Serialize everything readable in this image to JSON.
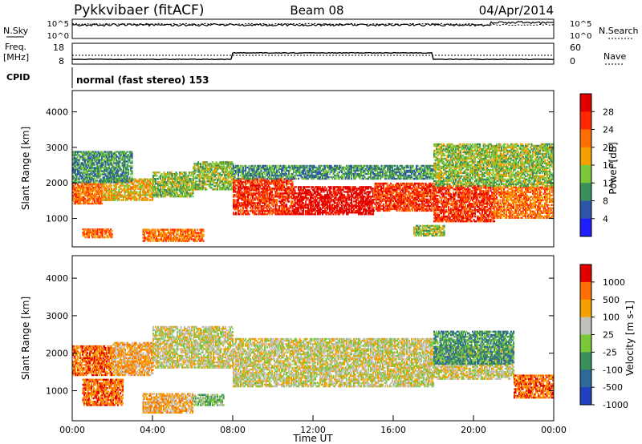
{
  "header": {
    "station": "Pykkvibaer (fitACF)",
    "beam": "Beam 08",
    "date": "04/Apr/2014"
  },
  "top_panels": {
    "nsky_label": "N.Sky",
    "nsearch_label": "N.Search",
    "noise_ticks": [
      "10^5",
      "10^0"
    ],
    "freq_label_1": "Freq.",
    "freq_label_2": "[MHz]",
    "freq_ticks": [
      "18",
      "8"
    ],
    "nave_label": "Nave",
    "nave_ticks": [
      "60",
      "0"
    ],
    "cpid_label": "CPID",
    "cpid_text": "normal (fast stereo) 153"
  },
  "chart_data": [
    {
      "type": "heatmap",
      "name": "power",
      "ylabel": "Slant Range [km]",
      "ylim": [
        200,
        4600
      ],
      "yticks": [
        1000,
        2000,
        3000,
        4000
      ],
      "xlim": [
        0,
        24
      ],
      "colorbar_label": "Power [dB]",
      "colorbar_ticks": [
        "28",
        "24",
        "20",
        "16",
        "12",
        "8",
        "4"
      ],
      "colors": [
        "#1e1eff",
        "#2d55a8",
        "#3a8f5a",
        "#7ac83a",
        "#f5a000",
        "#ff6e00",
        "#ff2800",
        "#e00000"
      ],
      "levels": [
        0,
        4,
        8,
        12,
        16,
        20,
        24,
        28
      ],
      "echo_bands": [
        {
          "t0": 0.0,
          "t1": 1.5,
          "r_lo": 1400,
          "r_hi": 2000,
          "level": 5
        },
        {
          "t0": 1.5,
          "t1": 4.0,
          "r_lo": 1500,
          "r_hi": 2100,
          "level": 4
        },
        {
          "t0": 4.0,
          "t1": 6.0,
          "r_lo": 1600,
          "r_hi": 2300,
          "level": 3
        },
        {
          "t0": 6.0,
          "t1": 8.0,
          "r_lo": 1800,
          "r_hi": 2600,
          "level": 3
        },
        {
          "t0": 8.0,
          "t1": 11.0,
          "r_lo": 1100,
          "r_hi": 2100,
          "level": 6
        },
        {
          "t0": 11.0,
          "t1": 15.0,
          "r_lo": 1100,
          "r_hi": 1900,
          "level": 7
        },
        {
          "t0": 15.0,
          "t1": 18.0,
          "r_lo": 1200,
          "r_hi": 2000,
          "level": 6
        },
        {
          "t0": 18.0,
          "t1": 21.0,
          "r_lo": 900,
          "r_hi": 1900,
          "level": 6
        },
        {
          "t0": 21.0,
          "t1": 24.0,
          "r_lo": 1000,
          "r_hi": 1900,
          "level": 5
        },
        {
          "t0": 0.0,
          "t1": 3.0,
          "r_lo": 2000,
          "r_hi": 2900,
          "level": 2
        },
        {
          "t0": 8.0,
          "t1": 18.0,
          "r_lo": 2100,
          "r_hi": 2500,
          "level": 2
        },
        {
          "t0": 18.0,
          "t1": 24.0,
          "r_lo": 1900,
          "r_hi": 3100,
          "level": 3
        },
        {
          "t0": 3.5,
          "t1": 6.5,
          "r_lo": 350,
          "r_hi": 700,
          "level": 5
        },
        {
          "t0": 0.5,
          "t1": 2.0,
          "r_lo": 450,
          "r_hi": 700,
          "level": 5
        },
        {
          "t0": 17.0,
          "t1": 18.5,
          "r_lo": 500,
          "r_hi": 800,
          "level": 3
        }
      ]
    },
    {
      "type": "heatmap",
      "name": "velocity",
      "ylabel": "Slant Range [km]",
      "ylim": [
        200,
        4600
      ],
      "yticks": [
        1000,
        2000,
        3000,
        4000
      ],
      "xlim": [
        0,
        24
      ],
      "xticks": [
        "00:00",
        "04:00",
        "08:00",
        "12:00",
        "16:00",
        "20:00",
        "00:00"
      ],
      "xlabel": "Time UT",
      "colorbar_label": "Velocity [m s-1]",
      "colorbar_ticks": [
        "1000",
        "500",
        "100",
        "25",
        "-25",
        "-100",
        "-500",
        "-1000"
      ],
      "colors": [
        "#2040c0",
        "#2d6a9a",
        "#3a8f5a",
        "#7ac83a",
        "#c0c0b8",
        "#f5a000",
        "#ff6e00",
        "#e00000"
      ],
      "echo_bands": [
        {
          "t0": 0.0,
          "t1": 2.0,
          "r_lo": 1400,
          "r_hi": 2200,
          "level": 6
        },
        {
          "t0": 2.0,
          "t1": 4.0,
          "r_lo": 1400,
          "r_hi": 2300,
          "level": 5
        },
        {
          "t0": 4.0,
          "t1": 8.0,
          "r_lo": 1600,
          "r_hi": 2700,
          "level": 4
        },
        {
          "t0": 8.0,
          "t1": 18.0,
          "r_lo": 1100,
          "r_hi": 2400,
          "level": 4
        },
        {
          "t0": 18.0,
          "t1": 22.0,
          "r_lo": 1300,
          "r_hi": 2200,
          "level": 4
        },
        {
          "t0": 22.0,
          "t1": 24.0,
          "r_lo": 800,
          "r_hi": 1400,
          "level": 6
        },
        {
          "t0": 3.5,
          "t1": 6.0,
          "r_lo": 400,
          "r_hi": 900,
          "level": 5
        },
        {
          "t0": 0.5,
          "t1": 2.5,
          "r_lo": 600,
          "r_hi": 1300,
          "level": 6
        },
        {
          "t0": 18.0,
          "t1": 22.0,
          "r_lo": 1700,
          "r_hi": 2600,
          "level": 2
        },
        {
          "t0": 6.0,
          "t1": 7.5,
          "r_lo": 600,
          "r_hi": 900,
          "level": 3
        }
      ]
    }
  ]
}
